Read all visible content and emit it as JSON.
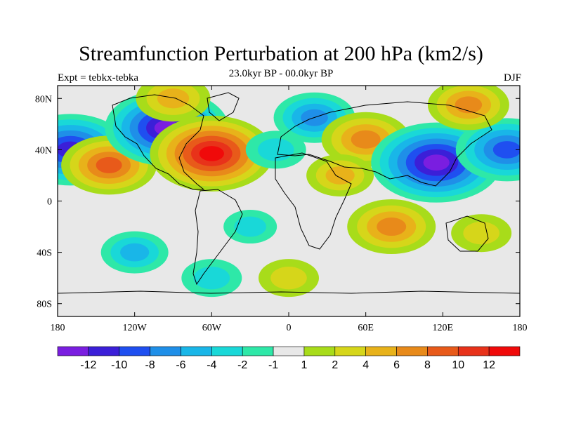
{
  "title": "Streamfunction Perturbation at 200 hPa (km2/s)",
  "subtitle_left": "Expt = tebkx-tebka",
  "subtitle_center": "23.0kyr BP - 00.0kyr BP",
  "subtitle_right": "DJF",
  "colors": {
    "fill_bins": [
      "#7a1ee0",
      "#3b1fd8",
      "#1f4ff0",
      "#1f8fe8",
      "#19b6e8",
      "#19d8d8",
      "#2ee8a8",
      "#e8e8e8",
      "#a8dc1a",
      "#d6d61a",
      "#e8b21a",
      "#e88a1a",
      "#e85a1a",
      "#e8321a",
      "#f00a0a"
    ],
    "missing": "#e8e8e8"
  },
  "chart_data": {
    "type": "heatmap",
    "title": "Streamfunction Perturbation at 200 hPa (km2/s)",
    "projection": "cylindrical-equidistant",
    "x_axis": {
      "range": [
        -180,
        180
      ],
      "ticks": [
        -180,
        -120,
        -60,
        0,
        60,
        120,
        180
      ],
      "tick_labels": [
        "180",
        "120W",
        "60W",
        "0",
        "60E",
        "120E",
        "180"
      ]
    },
    "y_axis": {
      "range": [
        -90,
        90
      ],
      "ticks": [
        80,
        40,
        0,
        -40,
        -80
      ],
      "tick_labels": [
        "80N",
        "40N",
        "0",
        "40S",
        "80S"
      ]
    },
    "colorbar": {
      "levels": [
        -12,
        -10,
        -8,
        -6,
        -4,
        -2,
        -1,
        1,
        2,
        4,
        6,
        8,
        10,
        12
      ],
      "labels": [
        "-12",
        "-10",
        "-8",
        "-6",
        "-4",
        "-2",
        "-1",
        "1",
        "2",
        "4",
        "6",
        "8",
        "10",
        "12"
      ]
    },
    "features": [
      {
        "lon": -170,
        "lat": 40,
        "value": -11
      },
      {
        "lon": -140,
        "lat": 28,
        "value": 8
      },
      {
        "lon": -95,
        "lat": 57,
        "value": -12
      },
      {
        "lon": -60,
        "lat": 37,
        "value": 12
      },
      {
        "lon": 20,
        "lat": 65,
        "value": -6
      },
      {
        "lon": 60,
        "lat": 48,
        "value": 7
      },
      {
        "lon": 115,
        "lat": 30,
        "value": -13
      },
      {
        "lon": 170,
        "lat": 40,
        "value": -9
      },
      {
        "lon": 80,
        "lat": -20,
        "value": 7
      },
      {
        "lon": 140,
        "lat": 75,
        "value": 6
      },
      {
        "lon": -90,
        "lat": 80,
        "value": 5
      },
      {
        "lon": -10,
        "lat": 40,
        "value": -3
      },
      {
        "lon": -30,
        "lat": -20,
        "value": -2
      },
      {
        "lon": -120,
        "lat": -40,
        "value": -4
      },
      {
        "lon": 150,
        "lat": -25,
        "value": 3
      },
      {
        "lon": 40,
        "lat": 20,
        "value": 4
      },
      {
        "lon": -60,
        "lat": -60,
        "value": -3
      },
      {
        "lon": 0,
        "lat": -60,
        "value": 3
      }
    ]
  }
}
